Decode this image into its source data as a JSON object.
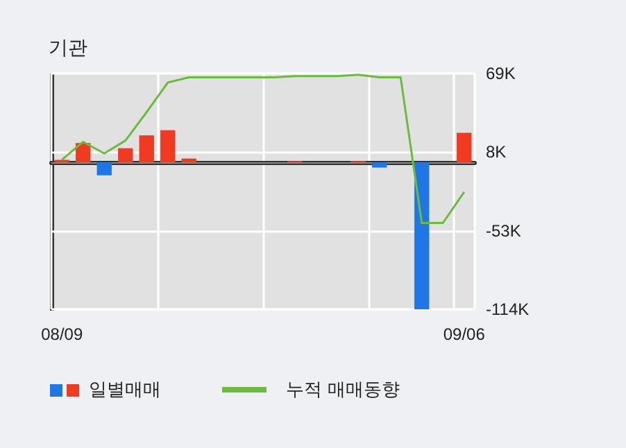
{
  "chart_data": {
    "type": "bar",
    "title": "기관",
    "categories": [
      "08/09",
      null,
      null,
      null,
      null,
      null,
      null,
      null,
      null,
      null,
      null,
      null,
      null,
      null,
      null,
      null,
      null,
      null,
      null,
      "09/06"
    ],
    "series": [
      {
        "name": "일별매매",
        "colors": [
          "#f03a21",
          "#f03a21",
          "#1f77e6",
          "#f03a21",
          "#f03a21",
          "#f03a21",
          "#f03a21",
          "#f03a21",
          "#f03a21",
          "#f03a21",
          "#f03a21",
          "#f03a21",
          "#f03a21",
          "#f03a21",
          "#f03a21",
          "#1f77e6",
          "#f03a21",
          "#1f77e6",
          "#f03a21",
          "#f03a21"
        ],
        "values": [
          2,
          15,
          -10,
          11,
          21,
          25,
          3,
          0,
          0,
          0,
          0,
          1,
          0,
          0,
          1,
          -4,
          0,
          -114,
          0,
          23
        ]
      },
      {
        "name": "누적 매매동향",
        "type": "line",
        "color": "#6cbb3c",
        "values": [
          2,
          16,
          7,
          17,
          39,
          62,
          66,
          66,
          66,
          66,
          66,
          67,
          67,
          67,
          68,
          66,
          66,
          -47,
          -47,
          -23
        ]
      }
    ],
    "ylim": [
      -114,
      69
    ],
    "yticks": [
      {
        "value": -114,
        "label": "-114K"
      },
      {
        "value": -53,
        "label": "-53K"
      },
      {
        "value": 8,
        "label": "8K"
      },
      {
        "value": 69,
        "label": "69K"
      }
    ],
    "ref_lines": [
      {
        "axis": "y",
        "value": 0,
        "color": "#888888"
      }
    ],
    "grid": true,
    "legend": "bottom left",
    "marker": "none"
  }
}
